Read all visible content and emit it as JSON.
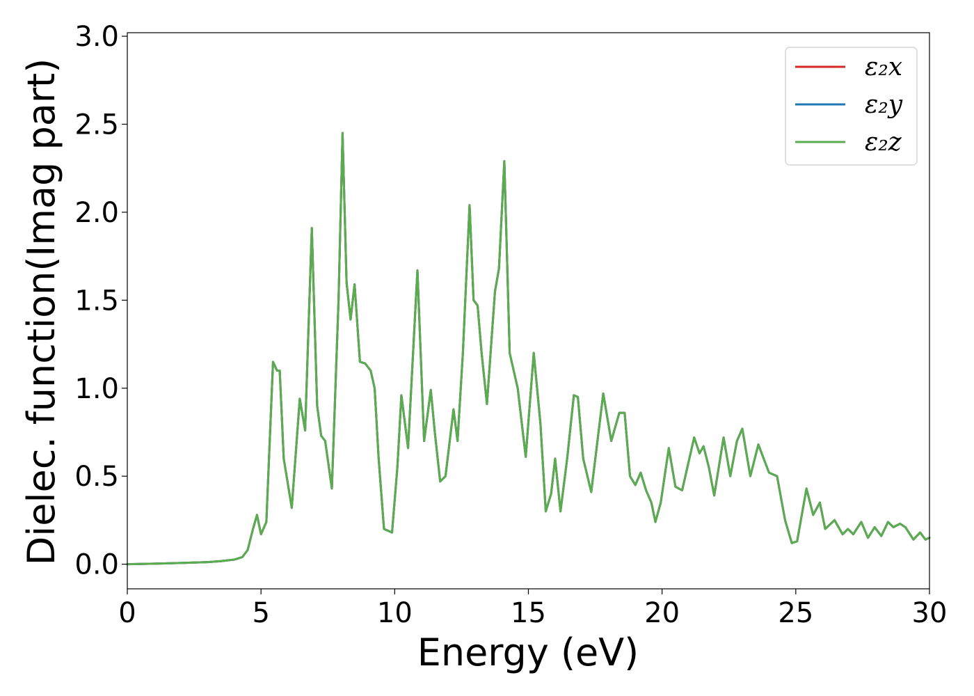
{
  "chart_data": {
    "type": "line",
    "xlabel": "Energy (eV)",
    "ylabel": "Dielec. function(Imag part)",
    "xlim": [
      0,
      30
    ],
    "ylim": [
      -0.14,
      3.02
    ],
    "xticks": [
      0,
      5,
      10,
      15,
      20,
      25,
      30
    ],
    "xtick_labels": [
      "0",
      "5",
      "10",
      "15",
      "20",
      "25",
      "30"
    ],
    "yticks": [
      0.0,
      0.5,
      1.0,
      1.5,
      2.0,
      2.5,
      3.0
    ],
    "ytick_labels": [
      "0.0",
      "0.5",
      "1.0",
      "1.5",
      "2.0",
      "2.5",
      "3.0"
    ],
    "grid": false,
    "legend_position": "top-right",
    "series": [
      {
        "name": "ε₂x",
        "color": "#d62728",
        "x": [
          0,
          1,
          2,
          3,
          3.5,
          4.0,
          4.3,
          4.5,
          4.7,
          4.85,
          5.0,
          5.2,
          5.45,
          5.6,
          5.7,
          5.85,
          6.15,
          6.45,
          6.65,
          6.9,
          7.1,
          7.25,
          7.4,
          7.65,
          7.9,
          8.05,
          8.2,
          8.35,
          8.5,
          8.7,
          8.9,
          9.1,
          9.25,
          9.4,
          9.6,
          9.9,
          10.1,
          10.25,
          10.5,
          10.85,
          11.1,
          11.35,
          11.5,
          11.7,
          11.9,
          12.2,
          12.35,
          12.55,
          12.8,
          12.95,
          13.1,
          13.25,
          13.45,
          13.75,
          13.9,
          14.1,
          14.3,
          14.45,
          14.6,
          14.9,
          15.2,
          15.45,
          15.65,
          15.85,
          16.0,
          16.2,
          16.45,
          16.7,
          16.85,
          17.05,
          17.35,
          17.8,
          18.1,
          18.4,
          18.6,
          18.8,
          19.0,
          19.2,
          19.4,
          19.6,
          19.75,
          19.95,
          20.25,
          20.5,
          20.75,
          21.2,
          21.4,
          21.55,
          21.75,
          21.95,
          22.3,
          22.55,
          22.8,
          23.0,
          23.3,
          23.6,
          23.9,
          24.0,
          24.3,
          24.6,
          24.85,
          25.05,
          25.4,
          25.65,
          25.9,
          26.1,
          26.45,
          26.75,
          26.95,
          27.15,
          27.45,
          27.7,
          27.95,
          28.2,
          28.45,
          28.65,
          28.9,
          29.1,
          29.4,
          29.65,
          29.85,
          30.0
        ],
        "y": [
          0.0,
          0.003,
          0.007,
          0.012,
          0.017,
          0.026,
          0.04,
          0.08,
          0.2,
          0.28,
          0.17,
          0.24,
          1.15,
          1.1,
          1.1,
          0.6,
          0.32,
          0.94,
          0.76,
          1.91,
          0.9,
          0.73,
          0.7,
          0.43,
          1.5,
          2.45,
          1.6,
          1.39,
          1.59,
          1.15,
          1.14,
          1.1,
          1.0,
          0.6,
          0.2,
          0.18,
          0.55,
          0.96,
          0.66,
          1.67,
          0.7,
          0.99,
          0.75,
          0.47,
          0.5,
          0.88,
          0.7,
          1.2,
          2.04,
          1.5,
          1.47,
          1.2,
          0.91,
          1.55,
          1.68,
          2.29,
          1.2,
          1.1,
          1.0,
          0.61,
          1.2,
          0.8,
          0.3,
          0.4,
          0.6,
          0.3,
          0.6,
          0.96,
          0.95,
          0.6,
          0.41,
          0.97,
          0.7,
          0.86,
          0.86,
          0.5,
          0.45,
          0.52,
          0.42,
          0.35,
          0.24,
          0.35,
          0.66,
          0.44,
          0.42,
          0.72,
          0.63,
          0.67,
          0.55,
          0.39,
          0.72,
          0.5,
          0.7,
          0.77,
          0.5,
          0.68,
          0.56,
          0.52,
          0.5,
          0.25,
          0.12,
          0.13,
          0.43,
          0.28,
          0.35,
          0.2,
          0.25,
          0.17,
          0.2,
          0.17,
          0.24,
          0.15,
          0.21,
          0.16,
          0.24,
          0.21,
          0.23,
          0.21,
          0.14,
          0.18,
          0.14,
          0.15
        ]
      },
      {
        "name": "ε₂y",
        "color": "#1f77b4",
        "x": [
          0,
          1,
          2,
          3,
          3.5,
          4.0,
          4.3,
          4.5,
          4.7,
          4.85,
          5.0,
          5.2,
          5.45,
          5.6,
          5.7,
          5.85,
          6.15,
          6.45,
          6.65,
          6.9,
          7.1,
          7.25,
          7.4,
          7.65,
          7.9,
          8.05,
          8.2,
          8.35,
          8.5,
          8.7,
          8.9,
          9.1,
          9.25,
          9.4,
          9.6,
          9.9,
          10.1,
          10.25,
          10.5,
          10.85,
          11.1,
          11.35,
          11.5,
          11.7,
          11.9,
          12.2,
          12.35,
          12.55,
          12.8,
          12.95,
          13.1,
          13.25,
          13.45,
          13.75,
          13.9,
          14.1,
          14.3,
          14.45,
          14.6,
          14.9,
          15.2,
          15.45,
          15.65,
          15.85,
          16.0,
          16.2,
          16.45,
          16.7,
          16.85,
          17.05,
          17.35,
          17.8,
          18.1,
          18.4,
          18.6,
          18.8,
          19.0,
          19.2,
          19.4,
          19.6,
          19.75,
          19.95,
          20.25,
          20.5,
          20.75,
          21.2,
          21.4,
          21.55,
          21.75,
          21.95,
          22.3,
          22.55,
          22.8,
          23.0,
          23.3,
          23.6,
          23.9,
          24.0,
          24.3,
          24.6,
          24.85,
          25.05,
          25.4,
          25.65,
          25.9,
          26.1,
          26.45,
          26.75,
          26.95,
          27.15,
          27.45,
          27.7,
          27.95,
          28.2,
          28.45,
          28.65,
          28.9,
          29.1,
          29.4,
          29.65,
          29.85,
          30.0
        ],
        "y": [
          0.0,
          0.003,
          0.007,
          0.012,
          0.017,
          0.026,
          0.04,
          0.08,
          0.2,
          0.28,
          0.17,
          0.24,
          1.15,
          1.1,
          1.1,
          0.6,
          0.32,
          0.94,
          0.76,
          1.91,
          0.9,
          0.73,
          0.7,
          0.43,
          1.5,
          2.45,
          1.6,
          1.39,
          1.59,
          1.15,
          1.14,
          1.1,
          1.0,
          0.6,
          0.2,
          0.18,
          0.55,
          0.96,
          0.66,
          1.67,
          0.7,
          0.99,
          0.75,
          0.47,
          0.5,
          0.88,
          0.7,
          1.2,
          2.04,
          1.5,
          1.47,
          1.2,
          0.91,
          1.55,
          1.68,
          2.29,
          1.2,
          1.1,
          1.0,
          0.61,
          1.2,
          0.8,
          0.3,
          0.4,
          0.6,
          0.3,
          0.6,
          0.96,
          0.95,
          0.6,
          0.41,
          0.97,
          0.7,
          0.86,
          0.86,
          0.5,
          0.45,
          0.52,
          0.42,
          0.35,
          0.24,
          0.35,
          0.66,
          0.44,
          0.42,
          0.72,
          0.63,
          0.67,
          0.55,
          0.39,
          0.72,
          0.5,
          0.7,
          0.77,
          0.5,
          0.68,
          0.56,
          0.52,
          0.5,
          0.25,
          0.12,
          0.13,
          0.43,
          0.28,
          0.35,
          0.2,
          0.25,
          0.17,
          0.2,
          0.17,
          0.24,
          0.15,
          0.21,
          0.16,
          0.24,
          0.21,
          0.23,
          0.21,
          0.14,
          0.18,
          0.14,
          0.15
        ]
      },
      {
        "name": "ε₂z",
        "color": "#5aac4e",
        "x": [
          0,
          1,
          2,
          3,
          3.5,
          4.0,
          4.3,
          4.5,
          4.7,
          4.85,
          5.0,
          5.2,
          5.45,
          5.6,
          5.7,
          5.85,
          6.15,
          6.45,
          6.65,
          6.9,
          7.1,
          7.25,
          7.4,
          7.65,
          7.9,
          8.05,
          8.2,
          8.35,
          8.5,
          8.7,
          8.9,
          9.1,
          9.25,
          9.4,
          9.6,
          9.9,
          10.1,
          10.25,
          10.5,
          10.85,
          11.1,
          11.35,
          11.5,
          11.7,
          11.9,
          12.2,
          12.35,
          12.55,
          12.8,
          12.95,
          13.1,
          13.25,
          13.45,
          13.75,
          13.9,
          14.1,
          14.3,
          14.45,
          14.6,
          14.9,
          15.2,
          15.45,
          15.65,
          15.85,
          16.0,
          16.2,
          16.45,
          16.7,
          16.85,
          17.05,
          17.35,
          17.8,
          18.1,
          18.4,
          18.6,
          18.8,
          19.0,
          19.2,
          19.4,
          19.6,
          19.75,
          19.95,
          20.25,
          20.5,
          20.75,
          21.2,
          21.4,
          21.55,
          21.75,
          21.95,
          22.3,
          22.55,
          22.8,
          23.0,
          23.3,
          23.6,
          23.9,
          24.0,
          24.3,
          24.6,
          24.85,
          25.05,
          25.4,
          25.65,
          25.9,
          26.1,
          26.45,
          26.75,
          26.95,
          27.15,
          27.45,
          27.7,
          27.95,
          28.2,
          28.45,
          28.65,
          28.9,
          29.1,
          29.4,
          29.65,
          29.85,
          30.0
        ],
        "y": [
          0.0,
          0.003,
          0.007,
          0.012,
          0.017,
          0.026,
          0.04,
          0.08,
          0.2,
          0.28,
          0.17,
          0.24,
          1.15,
          1.1,
          1.1,
          0.6,
          0.32,
          0.94,
          0.76,
          1.91,
          0.9,
          0.73,
          0.7,
          0.43,
          1.5,
          2.45,
          1.6,
          1.39,
          1.59,
          1.15,
          1.14,
          1.1,
          1.0,
          0.6,
          0.2,
          0.18,
          0.55,
          0.96,
          0.66,
          1.67,
          0.7,
          0.99,
          0.75,
          0.47,
          0.5,
          0.88,
          0.7,
          1.2,
          2.04,
          1.5,
          1.47,
          1.2,
          0.91,
          1.55,
          1.68,
          2.29,
          1.2,
          1.1,
          1.0,
          0.61,
          1.2,
          0.8,
          0.3,
          0.4,
          0.6,
          0.3,
          0.6,
          0.96,
          0.95,
          0.6,
          0.41,
          0.97,
          0.7,
          0.86,
          0.86,
          0.5,
          0.45,
          0.52,
          0.42,
          0.35,
          0.24,
          0.35,
          0.66,
          0.44,
          0.42,
          0.72,
          0.63,
          0.67,
          0.55,
          0.39,
          0.72,
          0.5,
          0.7,
          0.77,
          0.5,
          0.68,
          0.56,
          0.52,
          0.5,
          0.25,
          0.12,
          0.13,
          0.43,
          0.28,
          0.35,
          0.2,
          0.25,
          0.17,
          0.2,
          0.17,
          0.24,
          0.15,
          0.21,
          0.16,
          0.24,
          0.21,
          0.23,
          0.21,
          0.14,
          0.18,
          0.14,
          0.15
        ]
      }
    ]
  }
}
